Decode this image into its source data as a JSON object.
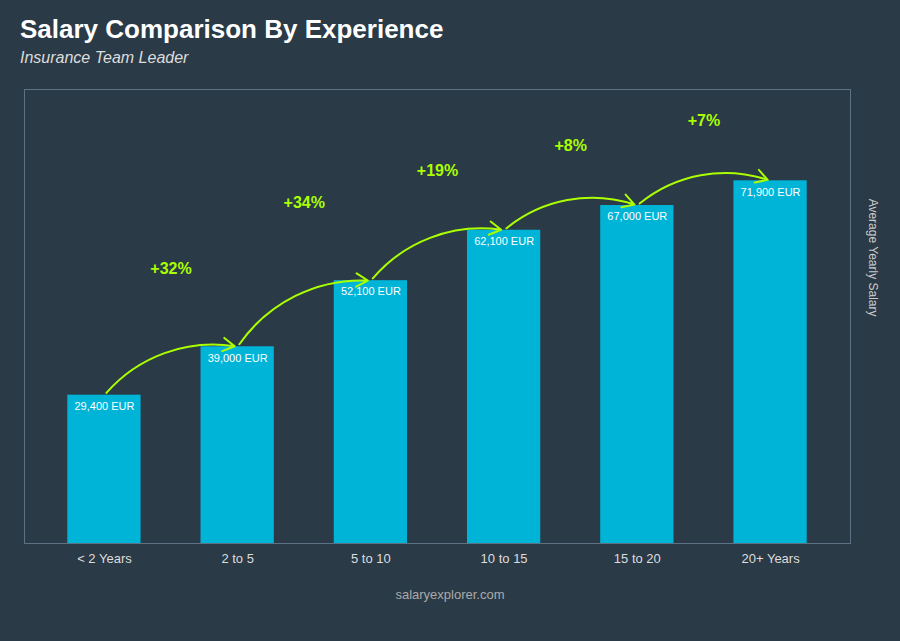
{
  "chart_data": {
    "type": "bar",
    "title": "Salary Comparison By Experience",
    "subtitle": "Insurance Team Leader",
    "ylabel": "Average Yearly Salary",
    "source": "salaryexplorer.com",
    "categories": [
      "< 2 Years",
      "2 to 5",
      "5 to 10",
      "10 to 15",
      "15 to 20",
      "20+ Years"
    ],
    "values": [
      29400,
      39000,
      52100,
      62100,
      67000,
      71900
    ],
    "value_labels": [
      "29,400 EUR",
      "39,000 EUR",
      "52,100 EUR",
      "62,100 EUR",
      "67,000 EUR",
      "71,900 EUR"
    ],
    "data_labels": true,
    "annotations": [
      "+32%",
      "+34%",
      "+19%",
      "+8%",
      "+7%"
    ],
    "color": "#00b4d8",
    "ylim": [
      0,
      90000
    ],
    "tick_labels": "x",
    "grid": false
  }
}
